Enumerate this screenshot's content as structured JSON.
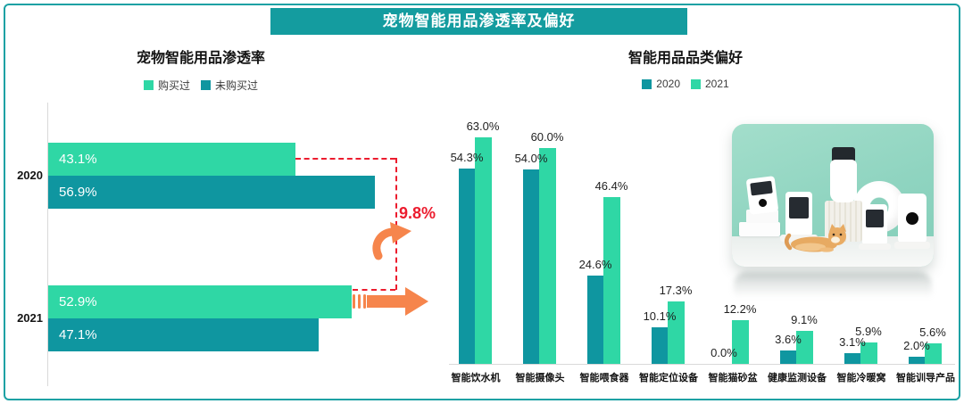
{
  "banner": {
    "title": "宠物智能用品渗透率及偏好"
  },
  "colors": {
    "teal": "#0F96A0",
    "green": "#2FD7A5",
    "banner_teal": "#149C9F",
    "annotation_red": "#EC1C2E",
    "arrow_orange": "#F6854C",
    "axis_gray": "#D9D9D9"
  },
  "chart_data": [
    {
      "type": "bar",
      "orientation": "horizontal",
      "title": "宠物智能用品渗透率",
      "categories": [
        "2020",
        "2021"
      ],
      "series": [
        {
          "name": "购买过",
          "color": "#2FD7A5",
          "values": [
            43.1,
            52.9
          ]
        },
        {
          "name": "未购买过",
          "color": "#0F96A0",
          "values": [
            56.9,
            47.1
          ]
        }
      ],
      "unit": "%",
      "xlim": [
        0,
        70
      ],
      "legend_position": "top",
      "value_labels": true,
      "annotation": {
        "label": "9.8%",
        "meaning": "2020→2021 购买过增长"
      }
    },
    {
      "type": "bar",
      "orientation": "vertical",
      "title": "智能用品品类偏好",
      "categories": [
        "智能饮水机",
        "智能摄像头",
        "智能喂食器",
        "智能定位设备",
        "智能猫砂盆",
        "健康监测设备",
        "智能冷暖窝",
        "智能训导产品"
      ],
      "series": [
        {
          "name": "2020",
          "color": "#0F96A0",
          "values": [
            54.3,
            54.0,
            24.6,
            10.1,
            0.0,
            3.6,
            3.1,
            2.0
          ]
        },
        {
          "name": "2021",
          "color": "#2FD7A5",
          "values": [
            63.0,
            60.0,
            46.4,
            17.3,
            12.2,
            9.1,
            5.9,
            5.6
          ]
        }
      ],
      "unit": "%",
      "ylim": [
        0,
        70
      ],
      "legend_position": "top",
      "value_labels": true
    }
  ]
}
